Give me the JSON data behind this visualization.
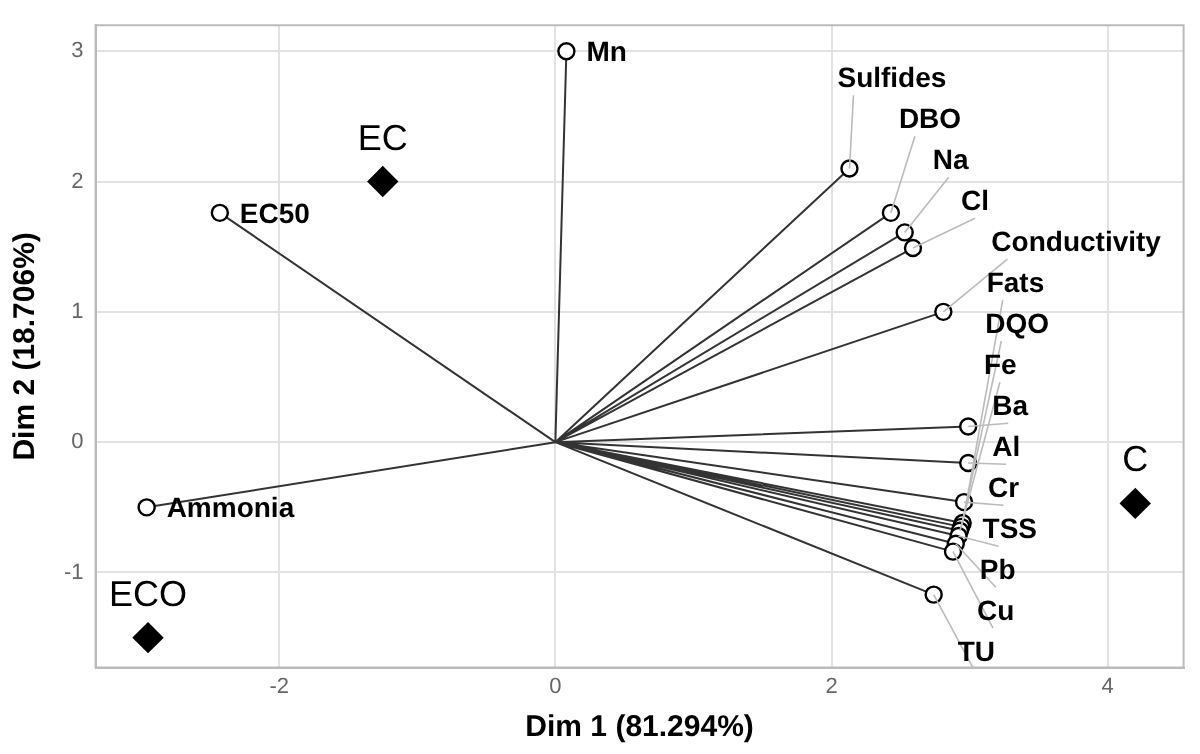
{
  "chart_data": {
    "type": "scatter",
    "xlabel": "Dim 1 (81.294%)",
    "ylabel": "Dim 2 (18.706%)",
    "xlim": [
      -3.33,
      4.55
    ],
    "ylim": [
      -1.73,
      3.2
    ],
    "xticks": [
      -2,
      0,
      2,
      4
    ],
    "yticks": [
      -1,
      0,
      1,
      2,
      3
    ],
    "grid": true,
    "legend": false,
    "series": [
      {
        "type": "line",
        "color": "#333333",
        "x": [
          0,
          0.08,
          0,
          -2.43,
          0,
          -2.96,
          0,
          2.13,
          0,
          2.43,
          0,
          2.53,
          0,
          2.59,
          0,
          2.81,
          0,
          2.95,
          0,
          2.94,
          0,
          2.93,
          0,
          2.99,
          0,
          2.99,
          0,
          2.96,
          0,
          2.92,
          0,
          2.9,
          0,
          2.88,
          0,
          2.74
        ],
        "values": [
          0,
          3.0,
          0,
          1.76,
          0,
          -0.5,
          0,
          2.1,
          0,
          1.76,
          0,
          1.61,
          0,
          1.49,
          0,
          1.0,
          0,
          -0.62,
          0,
          -0.65,
          0,
          -0.68,
          0,
          0.12,
          0,
          -0.16,
          0,
          -0.46,
          0,
          -0.72,
          0,
          -0.78,
          0,
          -0.84,
          0,
          -1.17
        ]
      },
      {
        "marker": "circle",
        "color": "#000000",
        "x": [
          0.08,
          -2.43,
          -2.96,
          2.13,
          2.43,
          2.53,
          2.59,
          2.81,
          2.95,
          2.94,
          2.93,
          2.99,
          2.99,
          2.96,
          2.92,
          2.9,
          2.88,
          2.74
        ],
        "values": [
          3.0,
          1.76,
          -0.5,
          2.1,
          1.76,
          1.61,
          1.49,
          1.0,
          -0.62,
          -0.65,
          -0.68,
          0.12,
          -0.16,
          -0.46,
          -0.72,
          -0.78,
          -0.84,
          -1.17
        ],
        "value_labels": [
          "Mn",
          "EC50",
          "Ammonia",
          "Sulfides",
          "DBO",
          "Na",
          "Cl",
          "Conductivity",
          "Fats",
          "DQO",
          "Fe",
          "Ba",
          "Al",
          "Cr",
          "TSS",
          "Pb",
          "Cu",
          "TU"
        ]
      },
      {
        "marker": "diamond",
        "color": "#000000",
        "x": [
          -1.25,
          -2.95,
          4.2
        ],
        "values": [
          2.0,
          -1.5,
          -0.47
        ],
        "value_labels": [
          "EC",
          "ECO",
          "C"
        ]
      }
    ]
  }
}
